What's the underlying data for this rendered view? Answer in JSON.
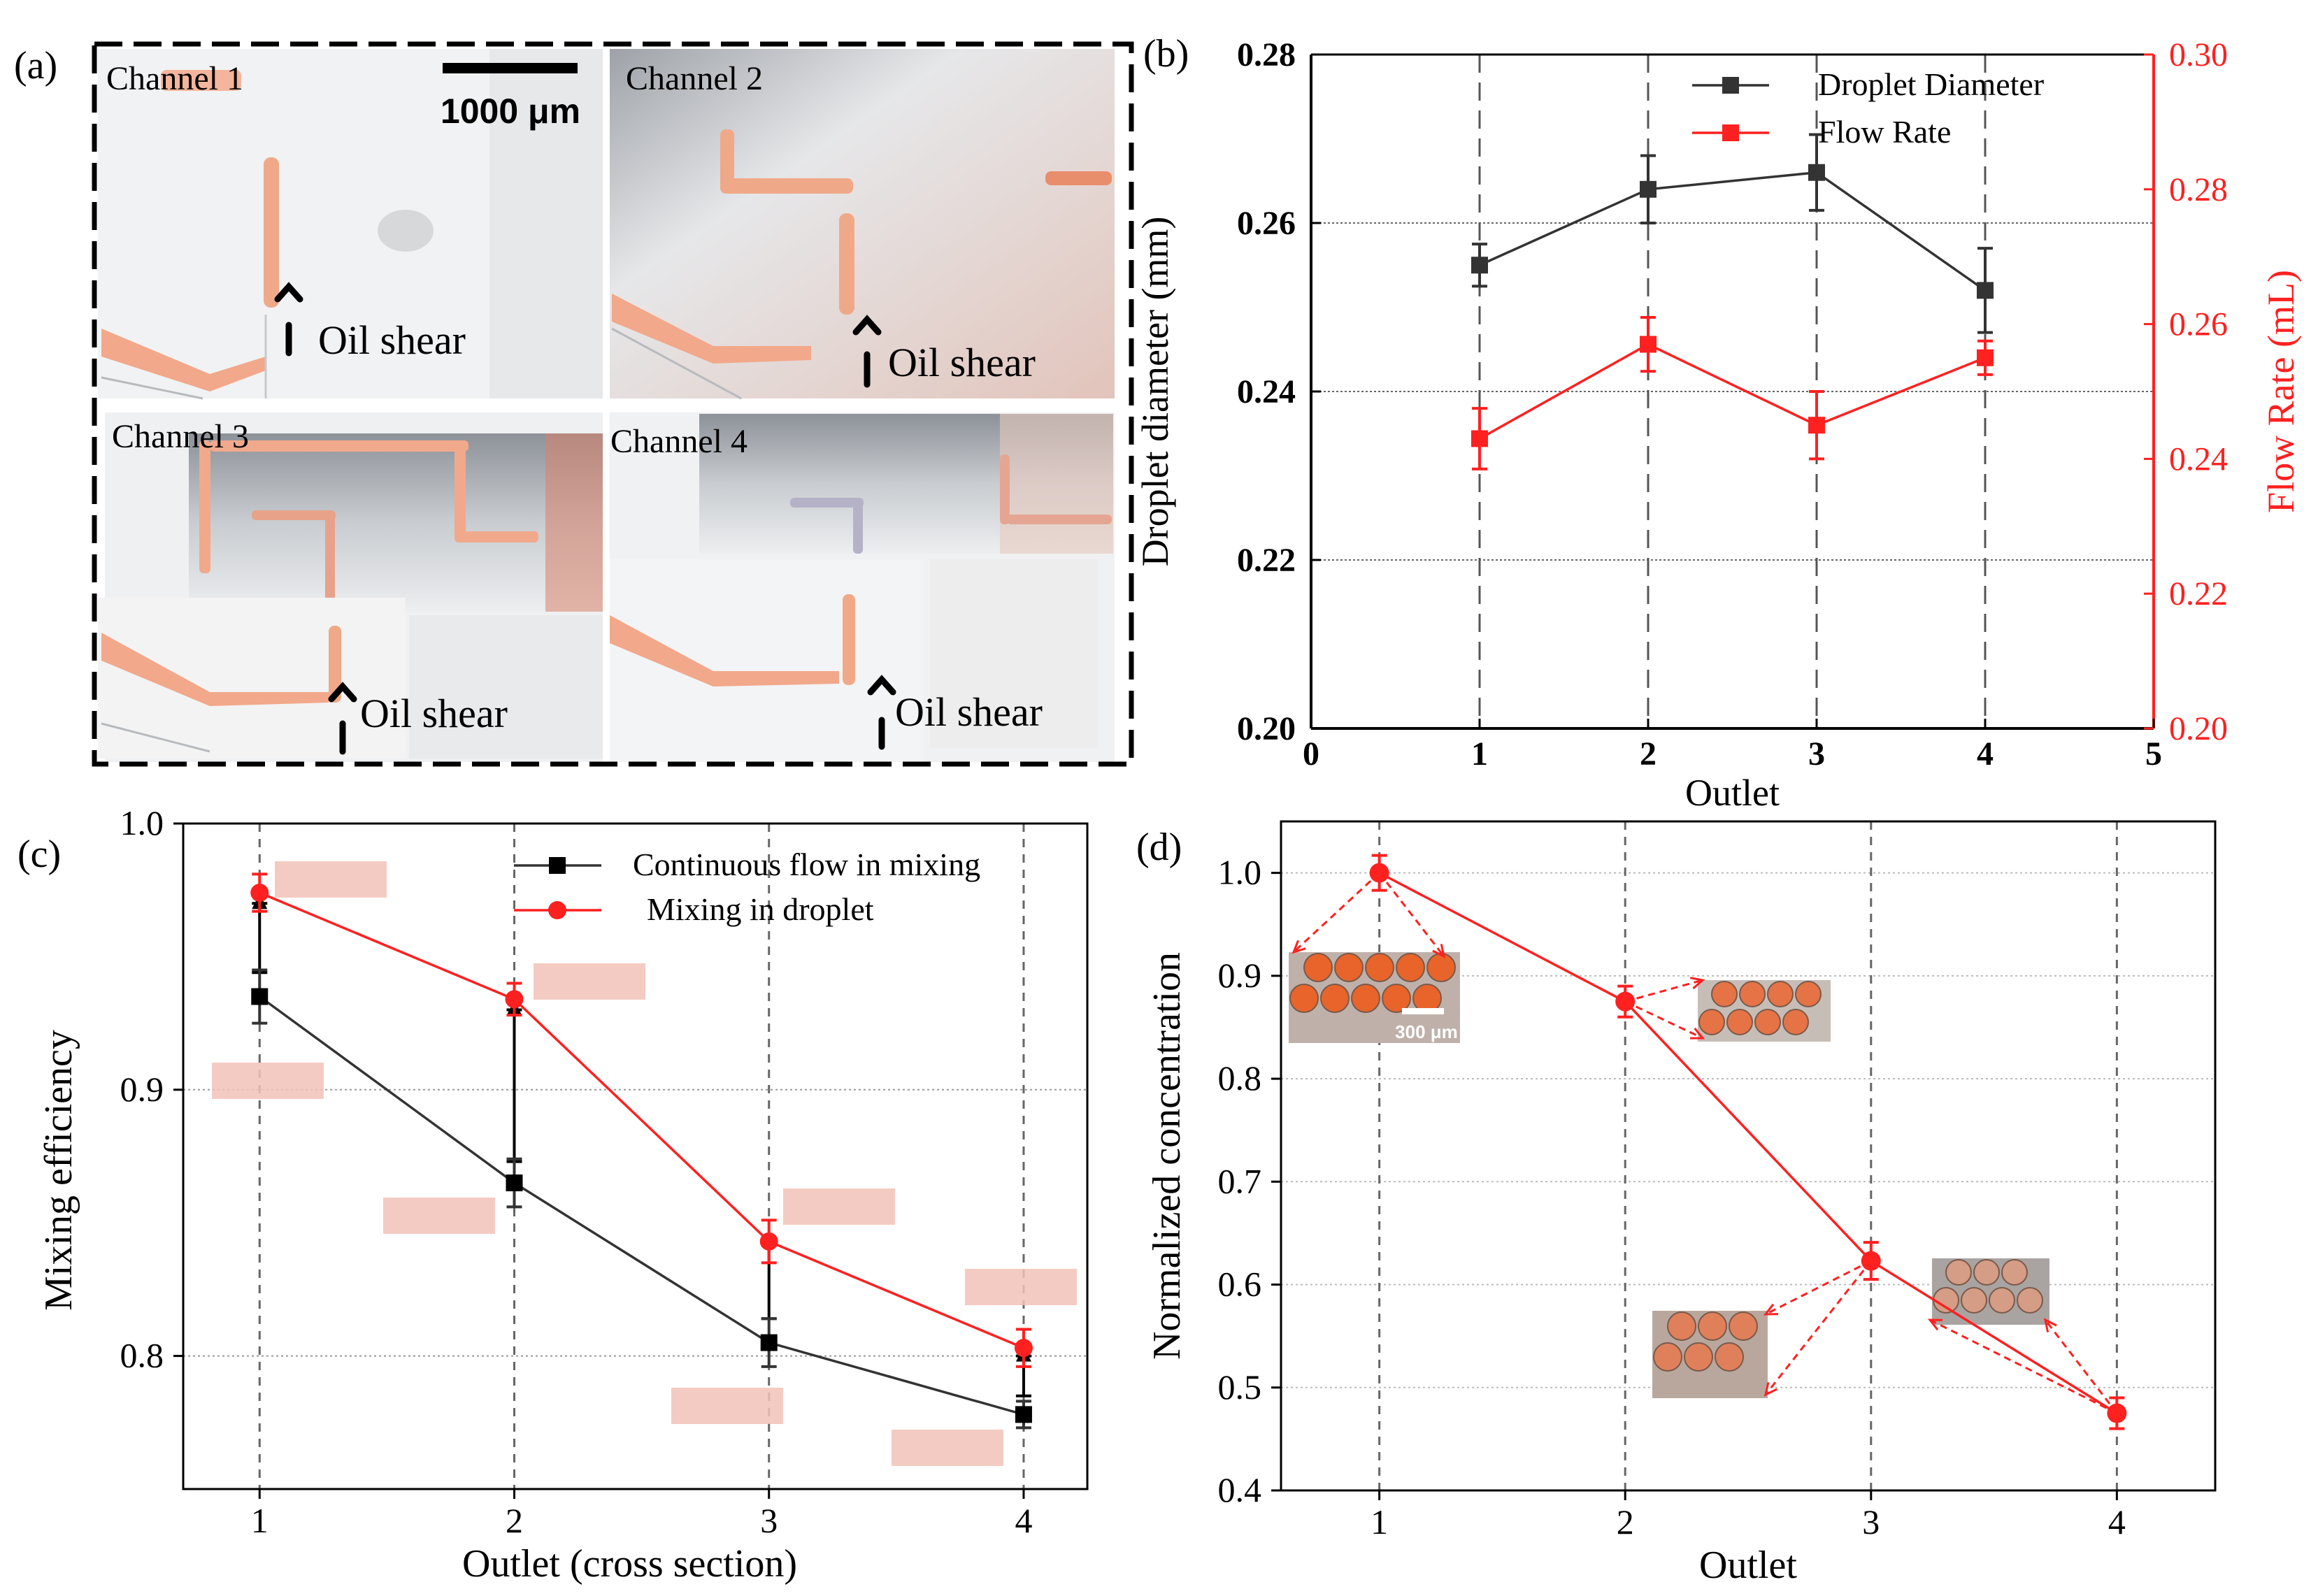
{
  "panels": {
    "a": {
      "label": "(a)",
      "scalebar_label": "1000 μm",
      "channels": [
        {
          "label": "Channel 1",
          "shear": "Oil shear"
        },
        {
          "label": "Channel 2",
          "shear": "Oil shear"
        },
        {
          "label": "Channel 3",
          "shear": "Oil shear"
        },
        {
          "label": "Channel 4",
          "shear": "Oil shear"
        }
      ]
    },
    "b": {
      "label": "(b)"
    },
    "c": {
      "label": "(c)"
    },
    "d": {
      "label": "(d)",
      "inset_scale_label": "300 μm"
    }
  },
  "colors": {
    "black_series": "#333333",
    "red_series": "#ff2020",
    "droplet_orange": "#e8642a",
    "stripe_pink": "#f2c2b8"
  },
  "chart_data": [
    {
      "id": "b",
      "type": "line",
      "xlabel": "Outlet",
      "ylabel": "Droplet diameter (mm)",
      "y2label": "Flow Rate (mL)",
      "xlim": [
        0,
        5
      ],
      "xticks": [
        "0",
        "1",
        "2",
        "3",
        "4",
        "5"
      ],
      "ylim": [
        0.2,
        0.28
      ],
      "yticks": [
        "0.20",
        "0.22",
        "0.24",
        "0.26",
        "0.28"
      ],
      "y2lim": [
        0.2,
        0.3
      ],
      "y2ticks": [
        "0.20",
        "0.22",
        "0.24",
        "0.26",
        "0.28",
        "0.30"
      ],
      "legend_position": "top-right",
      "series": [
        {
          "name": "Droplet Diameter",
          "axis": "left",
          "x": [
            1,
            2,
            3,
            4
          ],
          "y": [
            0.255,
            0.264,
            0.266,
            0.252
          ],
          "err": [
            0.0025,
            0.004,
            0.0045,
            0.005
          ]
        },
        {
          "name": "Flow Rate",
          "axis": "right",
          "x": [
            1,
            2,
            3,
            4
          ],
          "y": [
            0.243,
            0.257,
            0.245,
            0.255
          ],
          "err": [
            0.0045,
            0.004,
            0.005,
            0.0025
          ]
        }
      ]
    },
    {
      "id": "c",
      "type": "line",
      "xlabel": "Outlet (cross section)",
      "ylabel": "Mixing efficiency",
      "xlim": [
        0.7,
        4.25
      ],
      "xticks": [
        "1",
        "2",
        "3",
        "4"
      ],
      "ylim": [
        0.75,
        1.0
      ],
      "yticks": [
        "0.8",
        "0.9",
        "1.0"
      ],
      "legend_position": "top-right",
      "series": [
        {
          "name": "Continuous flow in mixing",
          "x": [
            1,
            2,
            3,
            4
          ],
          "y": [
            0.935,
            0.865,
            0.805,
            0.778
          ],
          "err": [
            0.01,
            0.009,
            0.009,
            0.005
          ]
        },
        {
          "name": "Mixing in droplet",
          "x": [
            1,
            2,
            3,
            4
          ],
          "y": [
            0.974,
            0.934,
            0.843,
            0.803
          ],
          "err": [
            0.007,
            0.006,
            0.008,
            0.007
          ]
        }
      ],
      "triangle_markers": {
        "x": [
          1,
          2,
          3,
          4
        ],
        "y": [
          0.97,
          0.93,
          0.843,
          0.8
        ],
        "err_low": [
          0.026,
          0.057,
          0.029,
          0.015
        ]
      }
    },
    {
      "id": "d",
      "type": "line",
      "xlabel": "Outlet",
      "ylabel": "Normalized concentration",
      "xlim": [
        0.6,
        4.4
      ],
      "xticks": [
        "1",
        "2",
        "3",
        "4"
      ],
      "ylim": [
        0.4,
        1.05
      ],
      "yticks": [
        "0.4",
        "0.5",
        "0.6",
        "0.7",
        "0.8",
        "0.9",
        "1.0"
      ],
      "series": [
        {
          "x": [
            1,
            2,
            3,
            4
          ],
          "y": [
            1.0,
            0.875,
            0.623,
            0.475
          ],
          "err": [
            0.017,
            0.015,
            0.018,
            0.015
          ]
        }
      ]
    }
  ]
}
